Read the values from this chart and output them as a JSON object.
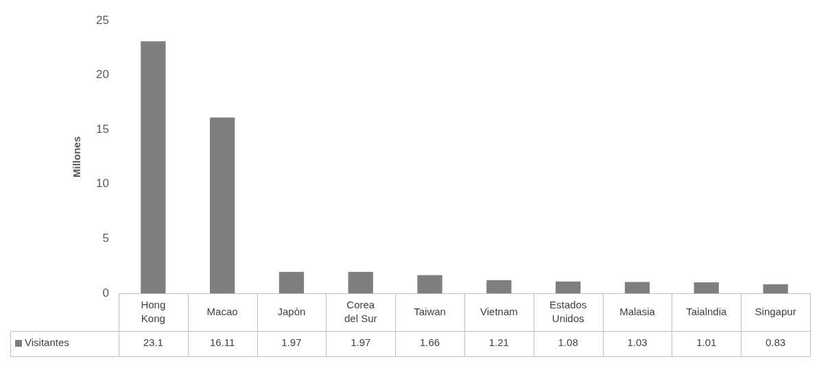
{
  "chart_data": {
    "type": "bar",
    "ylabel": "Millones",
    "categories": [
      "Hong Kong",
      "Macao",
      "Japòn",
      "Corea del Sur",
      "Taiwan",
      "Vietnam",
      "Estados Unidos",
      "Malasia",
      "Taialndia",
      "Singapur"
    ],
    "series": [
      {
        "name": "Visitantes",
        "color": "#7f7f7f",
        "values": [
          23.1,
          16.11,
          1.97,
          1.97,
          1.66,
          1.21,
          1.08,
          1.03,
          1.01,
          0.83
        ]
      }
    ],
    "ylim": [
      0,
      25
    ],
    "yticks": [
      0,
      5,
      10,
      15,
      20,
      25
    ],
    "grid": false,
    "legend": "bottom left",
    "data_labels": true
  }
}
